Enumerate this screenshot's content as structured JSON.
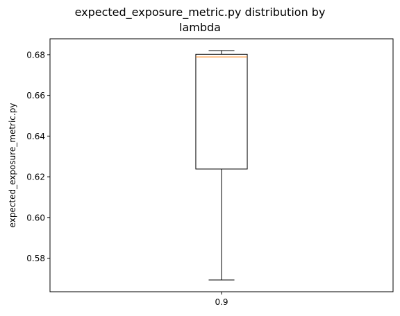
{
  "chart_data": {
    "type": "box",
    "title_lines": [
      "expected_exposure_metric.py distribution by",
      "lambda"
    ],
    "xlabel": "",
    "ylabel": "expected_exposure_metric.py",
    "categories": [
      "0.9"
    ],
    "boxes": [
      {
        "category": "0.9",
        "whisker_low": 0.5693,
        "q1": 0.6238,
        "median": 0.6789,
        "q3": 0.6802,
        "whisker_high": 0.682
      }
    ],
    "ylim": [
      0.5635,
      0.6878
    ],
    "yticks": [
      0.58,
      0.6,
      0.62,
      0.64,
      0.66,
      0.68
    ],
    "ytick_labels": [
      "0.58",
      "0.60",
      "0.62",
      "0.64",
      "0.66",
      "0.68"
    ],
    "colors": {
      "box": "#000000",
      "median": "#ff7f0e",
      "axes": "#000000"
    },
    "grid": false
  }
}
